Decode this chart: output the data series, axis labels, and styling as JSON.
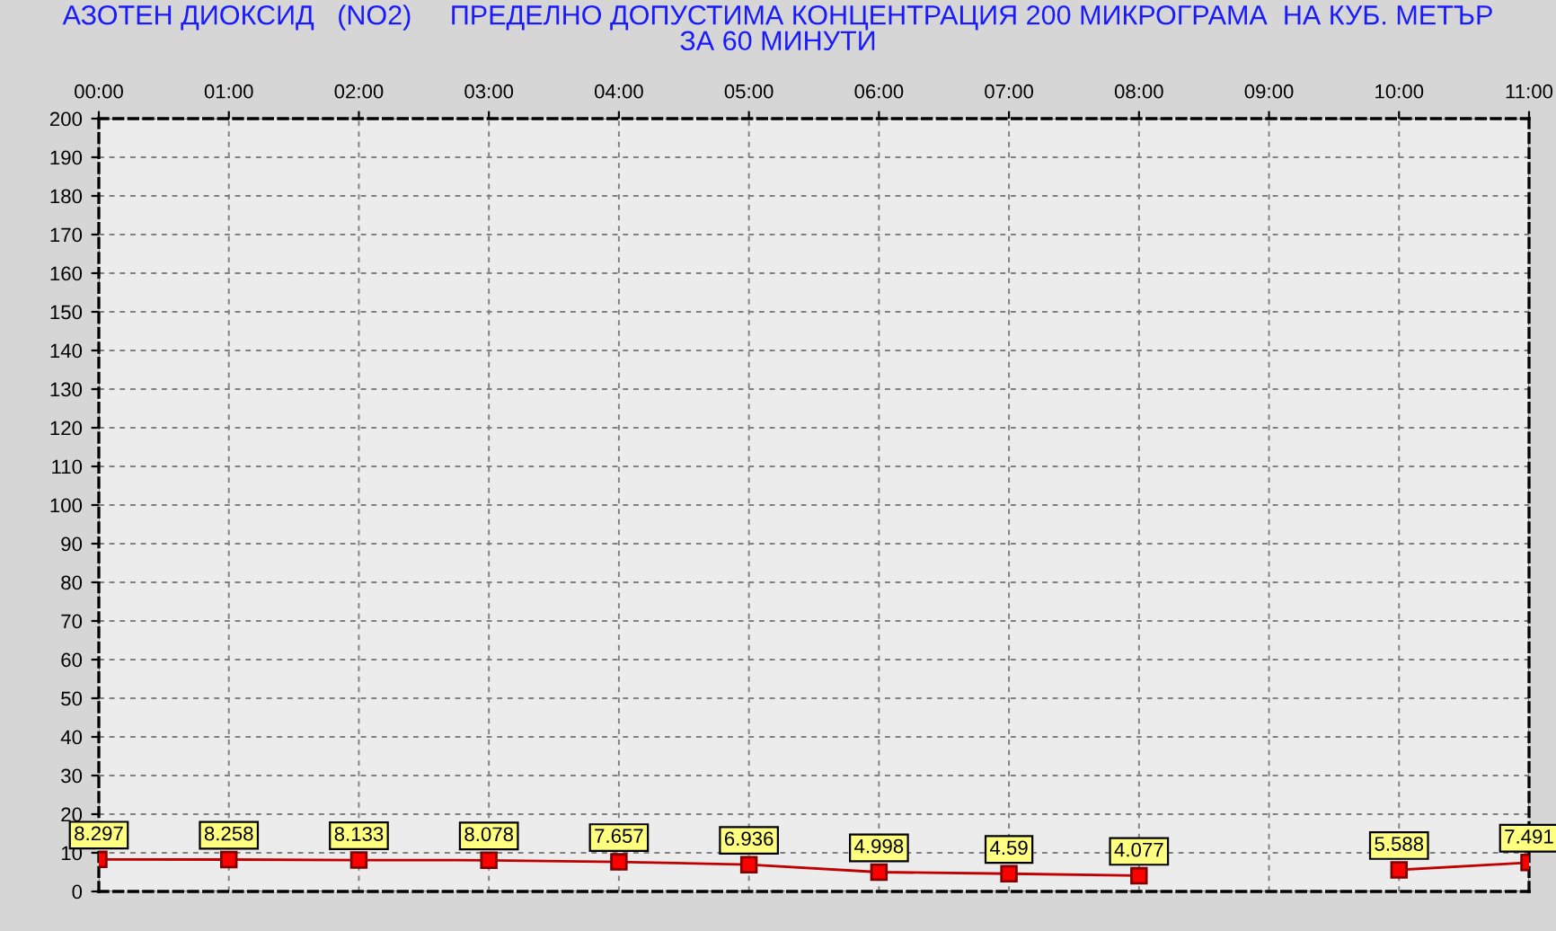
{
  "chart_data": {
    "type": "line",
    "title": "АЗОТЕН ДИОКСИД   (NO2)     ПРЕДЕЛНО ДОПУСТИМА КОНЦЕНТРАЦИЯ 200 МИКРОГРАМА  НА КУБ. МЕТЪР\nЗА 60 МИНУТИ",
    "categories": [
      "00:00",
      "01:00",
      "02:00",
      "03:00",
      "04:00",
      "05:00",
      "06:00",
      "07:00",
      "08:00",
      "09:00",
      "10:00",
      "11:00"
    ],
    "series": [
      {
        "color": "#c00000",
        "values": [
          8.297,
          8.258,
          8.133,
          8.078,
          7.657,
          6.936,
          4.998,
          4.59,
          4.077,
          null,
          5.588,
          7.491
        ]
      }
    ],
    "ylim": [
      0,
      200
    ],
    "yticks": [
      0,
      10,
      20,
      30,
      40,
      50,
      60,
      70,
      80,
      90,
      100,
      110,
      120,
      130,
      140,
      150,
      160,
      170,
      180,
      190,
      200
    ],
    "grid": true,
    "marker": "square",
    "data_labels": true
  }
}
